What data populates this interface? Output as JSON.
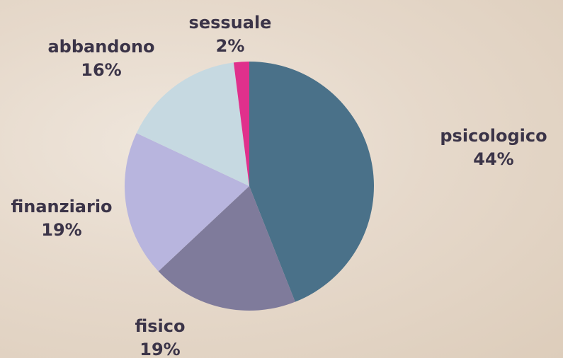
{
  "chart_data": {
    "type": "pie",
    "categories": [
      "psicologico",
      "fisico",
      "finanziario",
      "abbandono",
      "sessuale"
    ],
    "values": [
      44,
      19,
      19,
      16,
      2
    ],
    "value_labels": [
      "44%",
      "19%",
      "19%",
      "16%",
      "2%"
    ],
    "colors": [
      "#4a7189",
      "#7f7b9b",
      "#b8b5de",
      "#c6d9e1",
      "#e0308c"
    ]
  }
}
